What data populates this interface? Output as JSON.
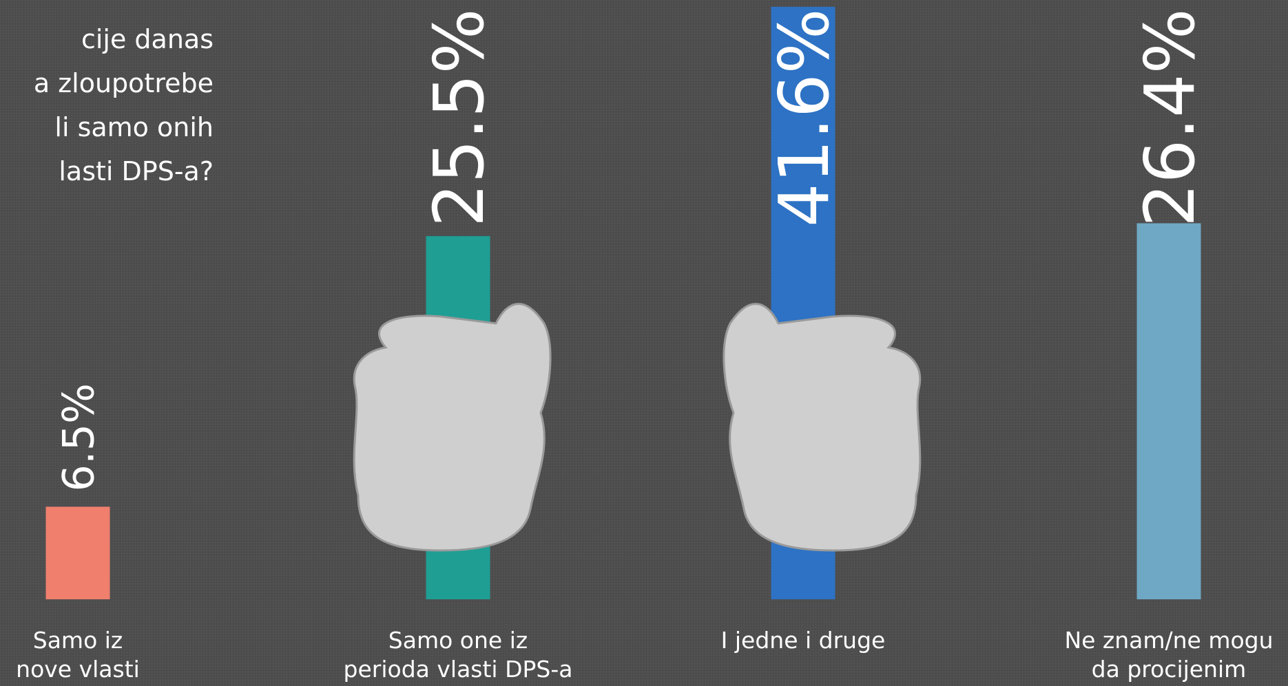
{
  "chart_data": {
    "type": "bar",
    "title": [
      "cije danas",
      "a zloupotrebe",
      "li samo onih",
      "lasti DPS-a?"
    ],
    "categories": [
      [
        "Samo iz",
        "nove vlasti"
      ],
      [
        "Samo one iz",
        "perioda vlasti DPS-a"
      ],
      [
        "I jedne i druge"
      ],
      [
        "Ne znam/ne mogu",
        "da procijenim"
      ]
    ],
    "values": [
      6.5,
      25.5,
      41.6,
      26.4
    ],
    "value_labels": [
      "6.5%",
      "25.5%",
      "41.6%",
      "26.4%"
    ],
    "colors": [
      "#f07f6e",
      "#1f9e94",
      "#2d72c4",
      "#6fa8c4"
    ]
  }
}
